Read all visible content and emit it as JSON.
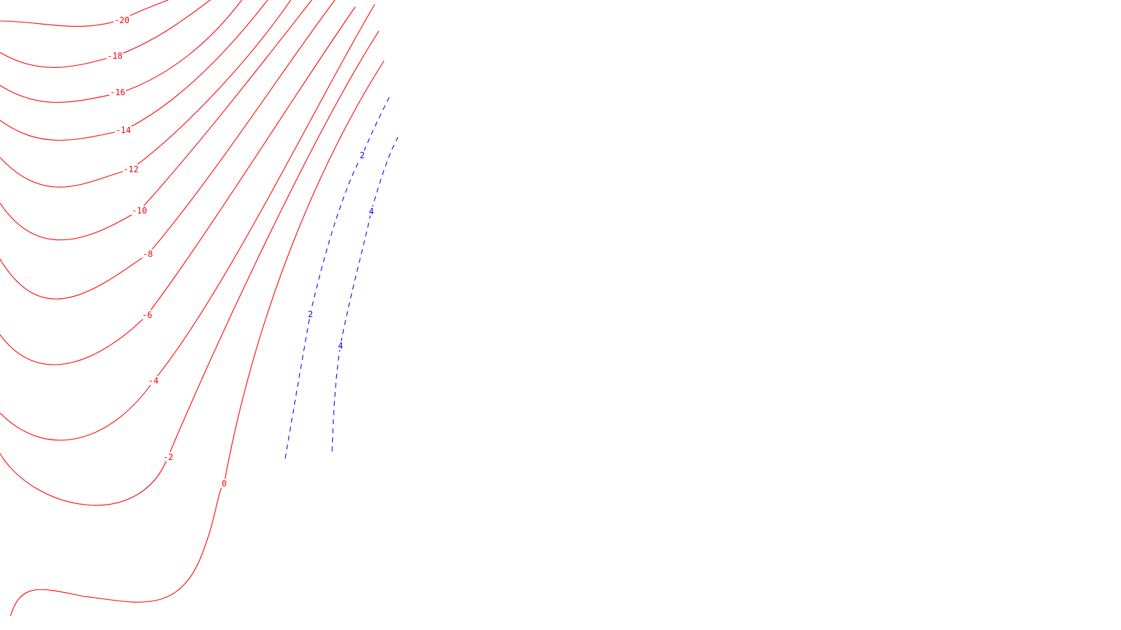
{
  "chart_data": {
    "type": "contour",
    "title": "",
    "xlabel": "",
    "ylabel": "",
    "colors": {
      "negative": "#ff0000",
      "positive": "#0000ff"
    },
    "contours": [
      {
        "level": -20,
        "label": "-20",
        "style": "solid"
      },
      {
        "level": -18,
        "label": "-18",
        "style": "solid"
      },
      {
        "level": -16,
        "label": "-16",
        "style": "solid"
      },
      {
        "level": -14,
        "label": "-14",
        "style": "solid"
      },
      {
        "level": -12,
        "label": "-12",
        "style": "solid"
      },
      {
        "level": -10,
        "label": "-10",
        "style": "solid"
      },
      {
        "level": -8,
        "label": "-8",
        "style": "solid"
      },
      {
        "level": -6,
        "label": "-6",
        "style": "solid"
      },
      {
        "level": -4,
        "label": "-4",
        "style": "solid"
      },
      {
        "level": -2,
        "label": "-2",
        "style": "solid"
      },
      {
        "level": 0,
        "label": "0",
        "style": "solid"
      },
      {
        "level": 2,
        "label": "2",
        "style": "dashed"
      },
      {
        "level": 4,
        "label": "4",
        "style": "dashed"
      }
    ]
  }
}
